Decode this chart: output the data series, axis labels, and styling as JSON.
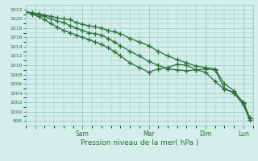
{
  "title": "",
  "xlabel": "Pression niveau de la mer( hPa )",
  "bg_color": "#d4eeea",
  "grid_color": "#8ec8c0",
  "line_color": "#2d6e3a",
  "ylim": [
    997,
    1023
  ],
  "yticks": [
    998,
    1000,
    1002,
    1004,
    1006,
    1008,
    1010,
    1012,
    1014,
    1016,
    1018,
    1020,
    1022
  ],
  "xlim": [
    0,
    72
  ],
  "x_tick_positions": [
    3,
    18,
    39,
    57,
    69
  ],
  "x_tick_labels": [
    "",
    "Sam",
    "Mar",
    "Dim",
    "Lun"
  ],
  "line1_x": [
    0,
    2,
    4,
    6,
    8,
    10,
    12,
    14,
    16,
    18,
    20,
    22,
    24,
    26,
    28,
    30,
    33,
    36,
    39,
    42,
    45,
    48,
    51,
    54,
    57,
    60,
    63,
    66,
    69,
    71
  ],
  "line1_y": [
    1021.5,
    1021.3,
    1021.1,
    1020.8,
    1020.5,
    1020.2,
    1020.0,
    1019.8,
    1019.2,
    1018.8,
    1018.5,
    1018.3,
    1018.0,
    1017.5,
    1017.2,
    1016.8,
    1015.8,
    1015.0,
    1014.2,
    1013.0,
    1012.0,
    1011.2,
    1010.5,
    1009.8,
    1009.5,
    1009.2,
    1006.0,
    1004.5,
    1001.8,
    998.5
  ],
  "line2_x": [
    0,
    2,
    4,
    6,
    8,
    10,
    12,
    14,
    16,
    18,
    20,
    22,
    24,
    26,
    28,
    30,
    33,
    36,
    39,
    42,
    45,
    48,
    51,
    54,
    57,
    60,
    63,
    66,
    69,
    71
  ],
  "line2_y": [
    1021.5,
    1021.2,
    1020.9,
    1020.5,
    1020.0,
    1019.5,
    1019.2,
    1018.5,
    1018.0,
    1017.5,
    1017.0,
    1016.8,
    1016.5,
    1015.8,
    1015.0,
    1014.2,
    1013.0,
    1012.0,
    1010.8,
    1010.0,
    1009.2,
    1009.0,
    1008.8,
    1009.0,
    1009.2,
    1009.0,
    1005.0,
    1004.0,
    1001.5,
    998.2
  ],
  "line3_x": [
    0,
    2,
    4,
    6,
    8,
    10,
    12,
    14,
    16,
    18,
    20,
    22,
    24,
    26,
    28,
    30,
    33,
    36,
    39,
    42,
    45,
    48,
    51,
    54,
    57,
    60,
    63,
    66,
    69,
    71
  ],
  "line3_y": [
    1021.5,
    1021.0,
    1020.5,
    1019.8,
    1019.0,
    1018.2,
    1017.5,
    1017.0,
    1016.5,
    1016.0,
    1015.5,
    1015.0,
    1014.5,
    1013.8,
    1013.0,
    1012.0,
    1010.5,
    1009.5,
    1008.5,
    1009.2,
    1009.5,
    1010.2,
    1010.0,
    1009.0,
    1008.5,
    1006.5,
    1004.8,
    1004.2,
    1002.0,
    998.8
  ]
}
